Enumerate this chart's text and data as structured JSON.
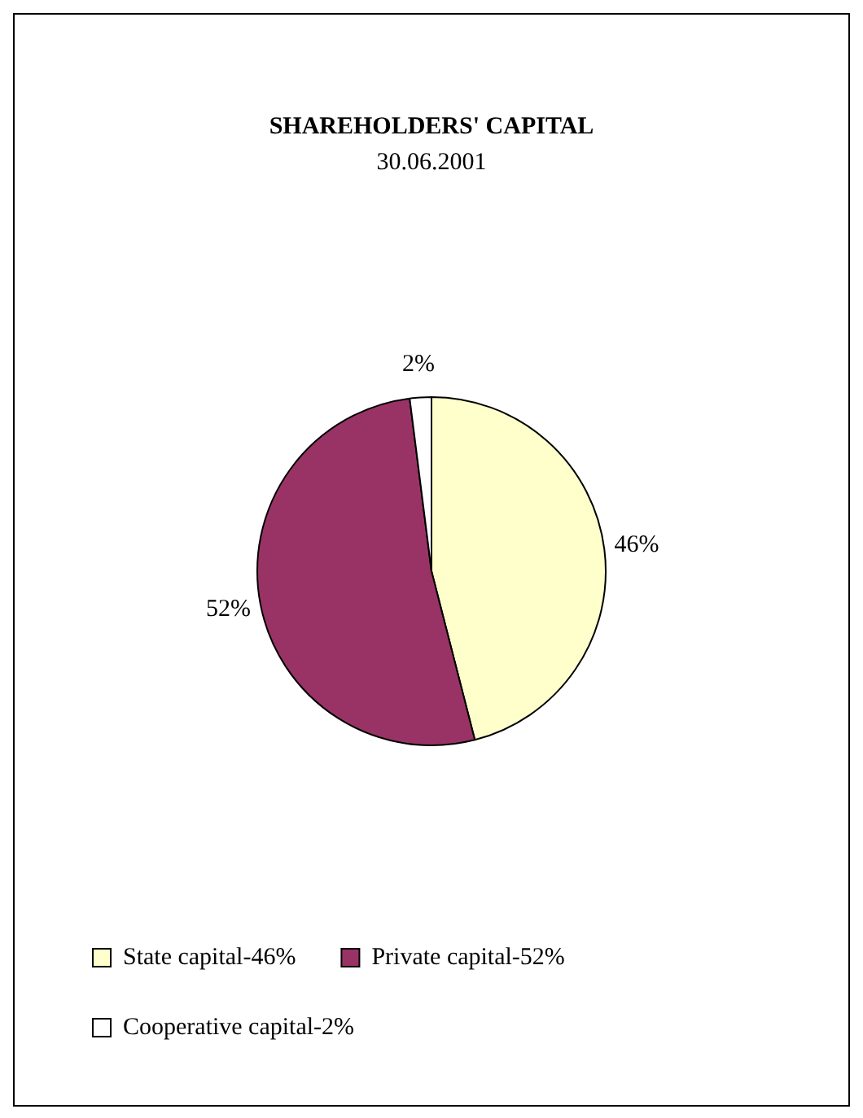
{
  "chart_data": {
    "type": "pie",
    "title": "SHAREHOLDERS' CAPITAL",
    "subtitle": "30.06.2001",
    "categories": [
      "State capital-46%",
      "Private capital-52%",
      "Cooperative capital-2%"
    ],
    "values": [
      46,
      52,
      2
    ],
    "colors": [
      "#ffffcc",
      "#993366",
      "#ffffff"
    ],
    "value_labels": [
      "46%",
      "52%",
      "2%"
    ],
    "legend": "bottom left"
  }
}
